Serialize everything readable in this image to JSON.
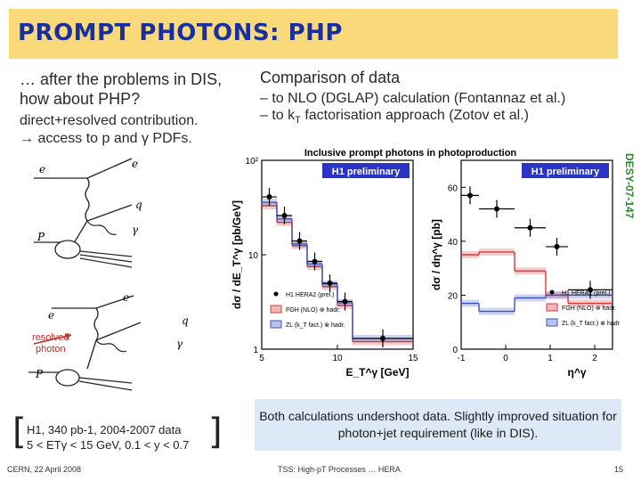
{
  "slide": {
    "title": "PROMPT PHOTONS: PHP",
    "left_intro": "… after the problems in DIS, how about PHP?",
    "left_sub_line1": "direct+resolved contribution.",
    "left_sub_line2": "→ access to p and γ PDFs.",
    "right_header": "Comparison of data",
    "right_line1": "– to NLO (DGLAP) calculation (Fontannaz et al.)",
    "right_line2_pre": "– to k",
    "right_line2_sub": "T",
    "right_line2_post": " factorisation approach (Zotov et al.)",
    "desy_label": "DESY-07-147",
    "callout": "Both calculations undershoot data. Slightly improved situation for photon+jet requirement (like in DIS).",
    "bracket_line1": "H1, 340 pb-1, 2004-2007 data",
    "bracket_line2": "5 < ETγ < 15 GeV, 0.1 < y < 0.7",
    "footer_left": "CERN, 22 April 2008",
    "footer_center": "TSS: High-pT Processes … HERA",
    "footer_page": "15"
  },
  "diagrams": {
    "direct": {
      "e_in": "e",
      "e_out": "e",
      "q": "q",
      "gamma": "γ",
      "p": "P"
    },
    "resolved": {
      "e_in": "e",
      "e_out": "e",
      "q": "q",
      "gamma": "γ",
      "p": "P",
      "resolved_line1": "resolved",
      "resolved_line2": "photon"
    }
  },
  "chart_data": {
    "header": "Inclusive prompt photons in photoproduction",
    "type": "mixed",
    "panels": [
      {
        "type": "histogram",
        "badge": "H1 preliminary",
        "ylabel": "dσ / dE_T^γ [pb/GeV]",
        "xlabel": "E_T^γ [GeV]",
        "yscale": "log",
        "xlim": [
          5,
          15
        ],
        "ylim": [
          1,
          100
        ],
        "xticks": [
          "5",
          "10",
          "15"
        ],
        "yticks": [
          "1",
          "10",
          "10²"
        ],
        "bin_edges": [
          5,
          6,
          7,
          8,
          9,
          10,
          11,
          15
        ],
        "series": [
          {
            "name": "H1 HERA2 (prel.)",
            "style": "points",
            "x": [
              5.5,
              6.5,
              7.5,
              8.5,
              9.5,
              10.5,
              13.0
            ],
            "y": [
              41,
              26,
              14,
              8.5,
              5,
              3.2,
              1.3
            ]
          },
          {
            "name": "FGH (NLO) ⊗ hadr.",
            "style": "band",
            "values": [
              33,
              22,
              12.5,
              7.5,
              4.6,
              2.9,
              1.2
            ]
          },
          {
            "name": "ZL (k_T fact.) ⊗ hadr.",
            "style": "band",
            "values": [
              36,
              24,
              13,
              8,
              4.9,
              3.1,
              1.3
            ]
          }
        ]
      },
      {
        "type": "histogram",
        "badge": "H1 preliminary",
        "ylabel": "dσ / dη^γ [pb]",
        "xlabel": "η^γ",
        "xlim": [
          -1,
          2.4
        ],
        "ylim": [
          0,
          70
        ],
        "xticks": [
          "-1",
          "0",
          "1",
          "2"
        ],
        "yticks": [
          "0",
          "20",
          "40",
          "60"
        ],
        "bin_edges": [
          -1,
          -0.6,
          0.2,
          0.9,
          1.4,
          2.4
        ],
        "series": [
          {
            "name": "H1 HERA2 (prel.)",
            "style": "points",
            "x": [
              -0.8,
              -0.2,
              0.55,
              1.15,
              1.9
            ],
            "y": [
              57,
              52,
              45,
              38,
              22
            ]
          },
          {
            "name": "FGH (NLO) ⊗ hadr.",
            "style": "band",
            "values": [
              35,
              36,
              29,
              20,
              17
            ]
          },
          {
            "name": "ZL (k_T fact.) ⊗ hadr.",
            "style": "band",
            "values": [
              17,
              14,
              19,
              20,
              20
            ]
          }
        ]
      }
    ]
  }
}
